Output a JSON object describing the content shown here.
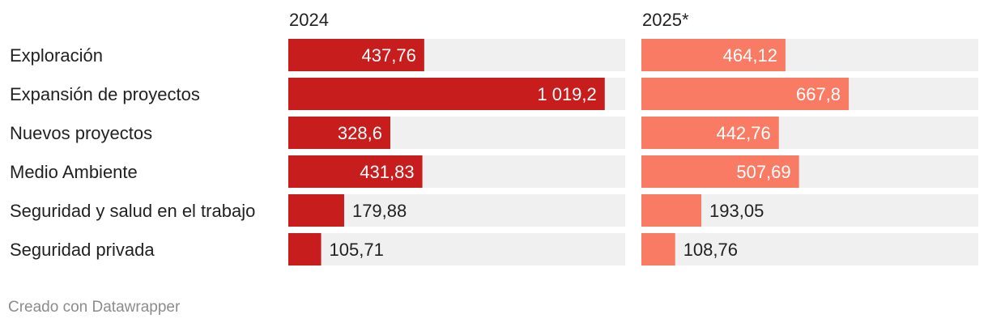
{
  "chart_data": {
    "type": "bar",
    "categories": [
      "Exploración",
      "Expansión de proyectos",
      "Nuevos proyectos",
      "Medio Ambiente",
      "Seguridad y salud en el trabajo",
      "Seguridad privada"
    ],
    "series": [
      {
        "name": "2024",
        "values": [
          437.76,
          1019.2,
          328.6,
          431.83,
          179.88,
          105.71
        ],
        "labels": [
          "437,76",
          "1 019,2",
          "328,6",
          "431,83",
          "179,88",
          "105,71"
        ],
        "color": "#c71e1d"
      },
      {
        "name": "2025*",
        "values": [
          464.12,
          667.8,
          442.76,
          507.69,
          193.05,
          108.76
        ],
        "labels": [
          "464,12",
          "667,8",
          "442,76",
          "507,69",
          "193,05",
          "108,76"
        ],
        "color": "#fa7b64"
      }
    ],
    "xlim": [
      0,
      1085
    ],
    "background_bar_color": "#f0f0f0",
    "grid": false,
    "legend": "none"
  },
  "footer": {
    "credit": "Creado con Datawrapper"
  }
}
